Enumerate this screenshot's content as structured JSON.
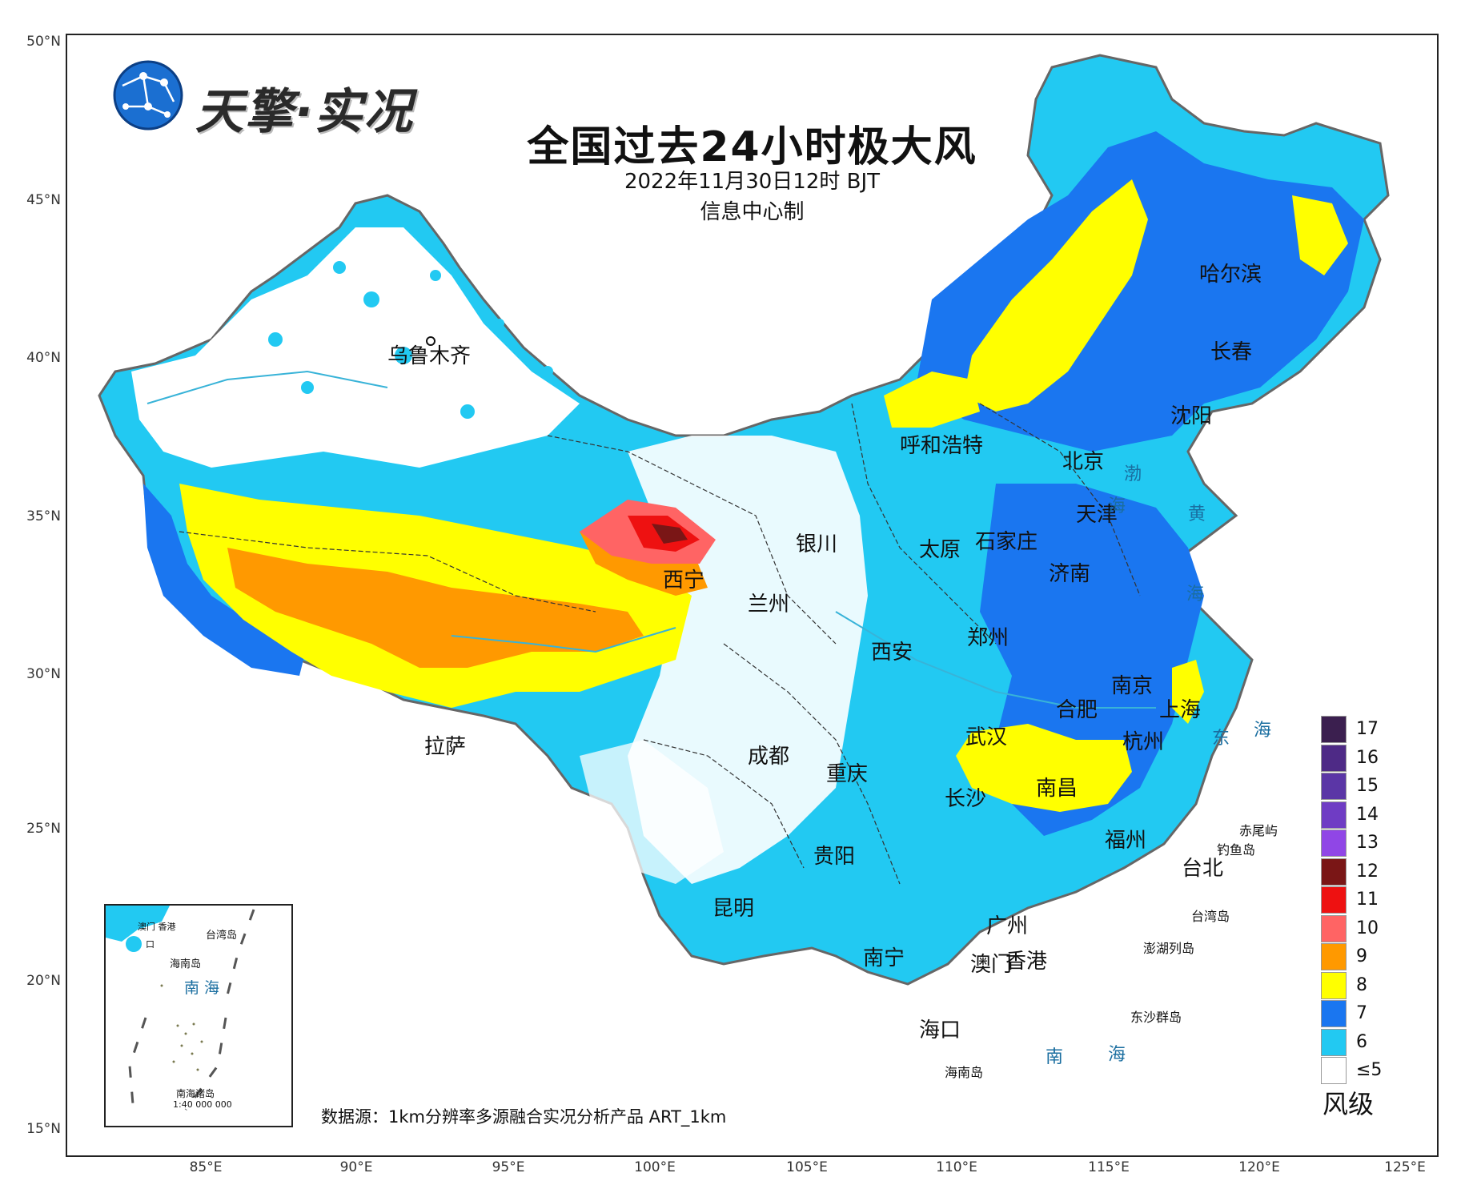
{
  "logo": {
    "text": "天擎·实况",
    "icon": "globe-network-icon"
  },
  "title": "全国过去24小时极大风",
  "subtitle": "2022年11月30日12时 BJT",
  "maker": "信息中心制",
  "axes": {
    "lat_labels": [
      "50°N",
      "45°N",
      "40°N",
      "35°N",
      "30°N",
      "25°N",
      "20°N",
      "15°N"
    ],
    "lon_labels": [
      "85°E",
      "90°E",
      "95°E",
      "100°E",
      "105°E",
      "110°E",
      "115°E",
      "120°E",
      "125°E"
    ]
  },
  "cities": [
    {
      "name": "乌鲁木齐"
    },
    {
      "name": "呼和浩特"
    },
    {
      "name": "北京"
    },
    {
      "name": "天津"
    },
    {
      "name": "哈尔滨"
    },
    {
      "name": "长春"
    },
    {
      "name": "沈阳"
    },
    {
      "name": "银川"
    },
    {
      "name": "太原"
    },
    {
      "name": "石家庄"
    },
    {
      "name": "济南"
    },
    {
      "name": "西宁"
    },
    {
      "name": "兰州"
    },
    {
      "name": "郑州"
    },
    {
      "name": "西安"
    },
    {
      "name": "南京"
    },
    {
      "name": "合肥"
    },
    {
      "name": "上海"
    },
    {
      "name": "武汉"
    },
    {
      "name": "杭州"
    },
    {
      "name": "拉萨"
    },
    {
      "name": "成都"
    },
    {
      "name": "重庆"
    },
    {
      "name": "南昌"
    },
    {
      "name": "长沙"
    },
    {
      "name": "福州"
    },
    {
      "name": "台北"
    },
    {
      "name": "贵阳"
    },
    {
      "name": "昆明"
    },
    {
      "name": "广州"
    },
    {
      "name": "南宁"
    },
    {
      "name": "澳门"
    },
    {
      "name": "香港"
    },
    {
      "name": "海口"
    }
  ],
  "seas": {
    "bohai": [
      "渤",
      "海"
    ],
    "huanghai": [
      "黄",
      "海"
    ],
    "donghai": [
      "东",
      "海"
    ],
    "nanhai": [
      "南",
      "海"
    ]
  },
  "islands": {
    "chiwei": "赤尾屿",
    "diaoyu": "钓鱼岛",
    "taiwan": "台湾岛",
    "penghu": "澎湖列岛",
    "dongsha": "东沙群岛",
    "hainan": "海南岛"
  },
  "inset": {
    "macau_hk": "澳门 香港",
    "taiwan": "台湾岛",
    "haikou": "口",
    "hainan": "海南岛",
    "sea": "南 海",
    "islands": "南海诸岛",
    "scale": "1:40 000 000"
  },
  "legend": {
    "title": "风级",
    "items": [
      {
        "label": "17",
        "color": "#3b1f4f"
      },
      {
        "label": "16",
        "color": "#4e2a86"
      },
      {
        "label": "15",
        "color": "#5b36a6"
      },
      {
        "label": "14",
        "color": "#6f3cc4"
      },
      {
        "label": "13",
        "color": "#9046e6"
      },
      {
        "label": "12",
        "color": "#7a1616"
      },
      {
        "label": "11",
        "color": "#ee1111"
      },
      {
        "label": "10",
        "color": "#ff6464"
      },
      {
        "label": "9",
        "color": "#ff9900"
      },
      {
        "label": "8",
        "color": "#ffff00"
      },
      {
        "label": "7",
        "color": "#1a76f0"
      },
      {
        "label": "6",
        "color": "#22c9f2"
      },
      {
        "label": "≤5",
        "color": "#ffffff"
      }
    ]
  },
  "source": "数据源：1km分辨率多源融合实况分析产品 ART_1km"
}
